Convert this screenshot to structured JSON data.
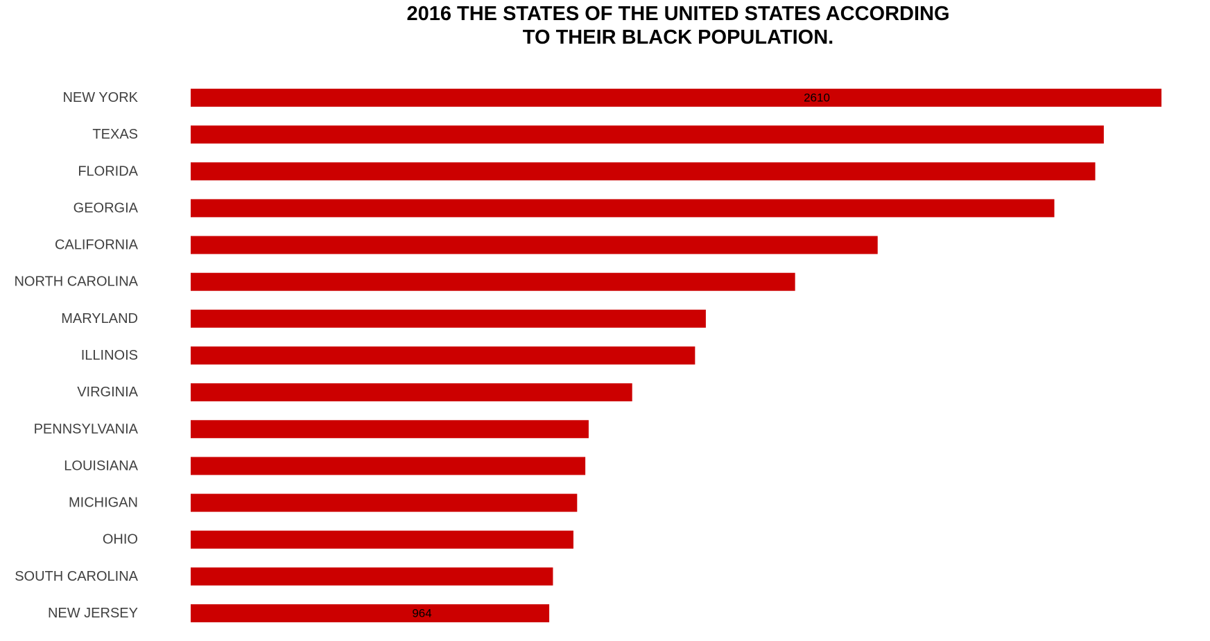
{
  "chart_data": {
    "type": "bar",
    "orientation": "horizontal",
    "title_lines": [
      "2016 THE STATES OF THE UNITED STATES ACCORDING",
      "TO THEIR BLACK POPULATION."
    ],
    "categories": [
      "NEW YORK",
      "TEXAS",
      "FLORIDA",
      "GEORGIA",
      "CALIFORNIA",
      "NORTH CAROLINA",
      "MARYLAND",
      "ILLINOIS",
      "VIRGINIA",
      "PENNSYLVANIA",
      "LOUISIANA",
      "MICHIGAN",
      "OHIO",
      "SOUTH CAROLINA",
      "NEW JERSEY"
    ],
    "values": [
      2610,
      2455,
      2432,
      2322,
      1847,
      1625,
      1385,
      1356,
      1187,
      1070,
      1061,
      1039,
      1029,
      974,
      964
    ],
    "data_labels": [
      {
        "category": "NEW YORK",
        "text": "2610"
      },
      {
        "category": "NEW JERSEY",
        "text": "964"
      }
    ],
    "xlim": [
      0,
      2610
    ],
    "bar_color": "#cc0000",
    "grid": false,
    "legend": "none",
    "xlabel": "",
    "ylabel": ""
  }
}
